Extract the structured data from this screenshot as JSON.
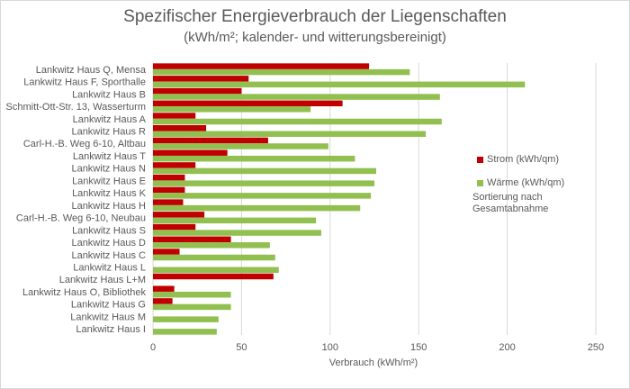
{
  "chart_data": {
    "type": "bar",
    "orientation": "horizontal",
    "title": "Spezifischer Energieverbrauch der Liegenschaften",
    "subtitle": "(kWh/m²; kalender- und witterungsbereinigt)",
    "xlabel": "Verbrauch (kWh/m²)",
    "ylabel": "",
    "xlim": [
      0,
      250
    ],
    "xticks": [
      0,
      50,
      100,
      150,
      200,
      250
    ],
    "grid": true,
    "legend_position": "right",
    "categories": [
      "Lankwitz Haus Q, Mensa",
      "Lankwitz Haus F, Sporthalle",
      "Lankwitz Haus B",
      "Schmitt-Ott-Str. 13, Wasserturm",
      "Lankwitz Haus A",
      "Lankwitz Haus R",
      "Carl-H.-B. Weg 6-10, Altbau",
      "Lankwitz Haus T",
      "Lankwitz Haus N",
      "Lankwitz Haus E",
      "Lankwitz Haus K",
      "Lankwitz Haus H",
      "Carl-H.-B. Weg 6-10, Neubau",
      "Lankwitz Haus S",
      "Lankwitz Haus D",
      "Lankwitz Haus C",
      "Lankwitz Haus L",
      "Lankwitz Haus L+M",
      "Lankwitz Haus O, Bibliothek",
      "Lankwitz Haus G",
      "Lankwitz Haus M",
      "Lankwitz Haus I"
    ],
    "series": [
      {
        "name": "Strom (kWh/qm)",
        "color": "#c00000",
        "values": [
          122,
          54,
          50,
          107,
          24,
          30,
          65,
          42,
          24,
          18,
          18,
          17,
          29,
          24,
          44,
          15,
          0,
          68,
          12,
          11,
          0,
          0
        ]
      },
      {
        "name": "Wärme (kWh/qm)",
        "color": "#92c050",
        "values": [
          145,
          210,
          162,
          89,
          163,
          154,
          99,
          114,
          126,
          125,
          123,
          117,
          92,
          95,
          66,
          69,
          71,
          0,
          44,
          44,
          37,
          36
        ]
      }
    ],
    "note": "Sortierung nach Gesamtabnahme"
  }
}
